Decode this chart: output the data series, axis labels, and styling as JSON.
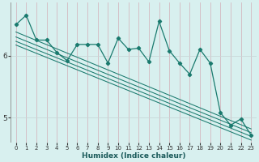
{
  "xlabel": "Humidex (Indice chaleur)",
  "bg_color": "#d8f0ef",
  "line_color": "#1a7a6e",
  "grid_color_v": "#d4b8c0",
  "grid_color_h": "#c8d8d8",
  "xlim": [
    -0.5,
    23.5
  ],
  "ylim": [
    4.6,
    6.85
  ],
  "yticks": [
    5,
    6
  ],
  "xticks": [
    0,
    1,
    2,
    3,
    4,
    5,
    6,
    7,
    8,
    9,
    10,
    11,
    12,
    13,
    14,
    15,
    16,
    17,
    18,
    19,
    20,
    21,
    22,
    23
  ],
  "data_x": [
    0,
    1,
    2,
    3,
    4,
    5,
    6,
    7,
    8,
    9,
    10,
    11,
    12,
    13,
    14,
    15,
    16,
    17,
    18,
    19,
    20,
    21,
    22,
    23
  ],
  "data_y": [
    6.5,
    6.65,
    6.25,
    6.25,
    6.05,
    5.92,
    6.18,
    6.18,
    6.18,
    5.88,
    6.28,
    6.1,
    6.12,
    5.9,
    6.55,
    6.08,
    5.88,
    5.7,
    6.1,
    5.88,
    5.08,
    4.88,
    4.98,
    4.72
  ],
  "trend1_y_start": 6.38,
  "trend1_y_end": 4.82,
  "trend2_y_start": 6.3,
  "trend2_y_end": 4.76,
  "trend3_y_start": 6.23,
  "trend3_y_end": 4.7,
  "trend4_y_start": 6.17,
  "trend4_y_end": 4.64
}
